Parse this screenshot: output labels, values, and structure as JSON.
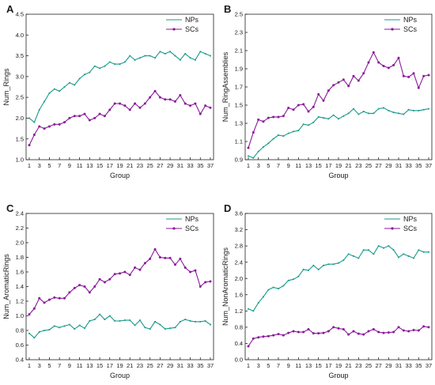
{
  "colors": {
    "NPs": "#1a9a8a",
    "SCs": "#8a1a9a",
    "axis": "#222222"
  },
  "chart_data": [
    {
      "panel": "A",
      "type": "line",
      "xlabel": "Group",
      "ylabel": "Num_Rings",
      "ylim": [
        1.0,
        4.5
      ],
      "yticks": [
        1.0,
        1.5,
        2.0,
        2.5,
        3.0,
        3.5,
        4.0,
        4.5
      ],
      "ytick_labels": [
        "1.0",
        "1.5",
        "2.0",
        "2.5",
        "3.0",
        "3.5",
        "4.0",
        "4.5"
      ],
      "xlim": [
        1,
        37
      ],
      "xticks": [
        1,
        3,
        5,
        7,
        9,
        11,
        13,
        15,
        17,
        19,
        21,
        23,
        25,
        27,
        29,
        31,
        33,
        35,
        37
      ],
      "xtick_labels": [
        "1",
        "3",
        "5",
        "7",
        "9",
        "11",
        "13",
        "15",
        "17",
        "19",
        "21",
        "23",
        "25",
        "27",
        "29",
        "31",
        "33",
        "35",
        "37"
      ],
      "legend": "top-right",
      "series": [
        {
          "name": "NPs",
          "values": [
            2.0,
            1.9,
            2.2,
            2.4,
            2.6,
            2.7,
            2.65,
            2.75,
            2.85,
            2.8,
            2.95,
            3.05,
            3.1,
            3.25,
            3.2,
            3.25,
            3.35,
            3.3,
            3.3,
            3.35,
            3.5,
            3.4,
            3.45,
            3.5,
            3.5,
            3.45,
            3.6,
            3.55,
            3.6,
            3.5,
            3.4,
            3.55,
            3.45,
            3.4,
            3.6,
            3.55,
            3.5
          ]
        },
        {
          "name": "SCs",
          "values": [
            1.35,
            1.6,
            1.8,
            1.75,
            1.8,
            1.85,
            1.85,
            1.9,
            2.0,
            2.05,
            2.05,
            2.1,
            1.95,
            2.0,
            2.1,
            2.05,
            2.2,
            2.35,
            2.35,
            2.3,
            2.2,
            2.35,
            2.25,
            2.35,
            2.5,
            2.65,
            2.5,
            2.45,
            2.45,
            2.4,
            2.55,
            2.35,
            2.3,
            2.35,
            2.1,
            2.3,
            2.25
          ]
        }
      ]
    },
    {
      "panel": "B",
      "type": "line",
      "xlabel": "Group",
      "ylabel": "Num_RingAssemblies",
      "ylim": [
        0.9,
        2.5
      ],
      "yticks": [
        0.9,
        1.1,
        1.3,
        1.5,
        1.7,
        1.9,
        2.1,
        2.3,
        2.5
      ],
      "ytick_labels": [
        "0.9",
        "1.1",
        "1.3",
        "1.5",
        "1.7",
        "1.9",
        "2.1",
        "2.3",
        "2.5"
      ],
      "xlim": [
        1,
        37
      ],
      "xticks": [
        1,
        3,
        5,
        7,
        9,
        11,
        13,
        15,
        17,
        19,
        21,
        23,
        25,
        27,
        29,
        31,
        33,
        35,
        37
      ],
      "xtick_labels": [
        "1",
        "3",
        "5",
        "7",
        "9",
        "11",
        "13",
        "15",
        "17",
        "19",
        "21",
        "23",
        "25",
        "27",
        "29",
        "31",
        "33",
        "35",
        "37"
      ],
      "legend": "top-right",
      "series": [
        {
          "name": "NPs",
          "values": [
            0.94,
            0.92,
            0.99,
            1.04,
            1.08,
            1.13,
            1.17,
            1.16,
            1.19,
            1.21,
            1.22,
            1.29,
            1.28,
            1.31,
            1.37,
            1.36,
            1.35,
            1.39,
            1.35,
            1.38,
            1.41,
            1.46,
            1.4,
            1.43,
            1.41,
            1.41,
            1.46,
            1.47,
            1.44,
            1.42,
            1.41,
            1.4,
            1.45,
            1.44,
            1.44,
            1.45,
            1.46
          ]
        },
        {
          "name": "SCs",
          "values": [
            1.03,
            1.2,
            1.34,
            1.32,
            1.36,
            1.37,
            1.37,
            1.38,
            1.47,
            1.45,
            1.5,
            1.51,
            1.43,
            1.48,
            1.62,
            1.55,
            1.66,
            1.72,
            1.75,
            1.78,
            1.71,
            1.82,
            1.77,
            1.85,
            1.97,
            2.08,
            1.97,
            1.93,
            1.91,
            1.94,
            2.02,
            1.82,
            1.81,
            1.85,
            1.69,
            1.82,
            1.83
          ]
        }
      ]
    },
    {
      "panel": "C",
      "type": "line",
      "xlabel": "Group",
      "ylabel": "Num_AromaticRings",
      "ylim": [
        0.4,
        2.4
      ],
      "yticks": [
        0.4,
        0.6,
        0.8,
        1.0,
        1.2,
        1.4,
        1.6,
        1.8,
        2.0,
        2.2,
        2.4
      ],
      "ytick_labels": [
        "0.4",
        "0.6",
        "0.8",
        "1.0",
        "1.2",
        "1.4",
        "1.6",
        "1.8",
        "2.0",
        "2.2",
        "2.4"
      ],
      "xlim": [
        1,
        37
      ],
      "xticks": [
        1,
        3,
        5,
        7,
        9,
        11,
        13,
        15,
        17,
        19,
        21,
        23,
        25,
        27,
        29,
        31,
        33,
        35,
        37
      ],
      "xtick_labels": [
        "1",
        "3",
        "5",
        "7",
        "9",
        "11",
        "13",
        "15",
        "17",
        "19",
        "21",
        "23",
        "25",
        "27",
        "29",
        "31",
        "33",
        "35",
        "37"
      ],
      "legend": "top-right",
      "series": [
        {
          "name": "NPs",
          "values": [
            0.76,
            0.7,
            0.78,
            0.8,
            0.81,
            0.86,
            0.84,
            0.86,
            0.88,
            0.82,
            0.87,
            0.83,
            0.93,
            0.95,
            1.02,
            0.95,
            1.0,
            0.93,
            0.93,
            0.94,
            0.94,
            0.87,
            0.94,
            0.84,
            0.82,
            0.92,
            0.88,
            0.82,
            0.83,
            0.84,
            0.92,
            0.95,
            0.93,
            0.92,
            0.92,
            0.93,
            0.88
          ]
        },
        {
          "name": "SCs",
          "values": [
            1.02,
            1.1,
            1.24,
            1.18,
            1.22,
            1.25,
            1.24,
            1.24,
            1.32,
            1.38,
            1.42,
            1.4,
            1.32,
            1.4,
            1.5,
            1.46,
            1.5,
            1.57,
            1.58,
            1.6,
            1.56,
            1.66,
            1.63,
            1.72,
            1.78,
            1.91,
            1.8,
            1.79,
            1.79,
            1.7,
            1.78,
            1.66,
            1.6,
            1.62,
            1.4,
            1.46,
            1.47
          ]
        }
      ]
    },
    {
      "panel": "D",
      "type": "line",
      "xlabel": "Group",
      "ylabel": "Num_NonAromaticRings",
      "ylim": [
        0.0,
        3.6
      ],
      "yticks": [
        0.0,
        0.4,
        0.8,
        1.2,
        1.6,
        2.0,
        2.4,
        2.8,
        3.2,
        3.6
      ],
      "ytick_labels": [
        "0.0",
        "0.4",
        "0.8",
        "1.2",
        "1.6",
        "2.0",
        "2.4",
        "2.8",
        "3.2",
        "3.6"
      ],
      "xlim": [
        1,
        37
      ],
      "xticks": [
        1,
        3,
        5,
        7,
        9,
        11,
        13,
        15,
        17,
        19,
        21,
        23,
        25,
        27,
        29,
        31,
        33,
        35,
        37
      ],
      "xtick_labels": [
        "1",
        "3",
        "5",
        "7",
        "9",
        "11",
        "13",
        "15",
        "17",
        "19",
        "21",
        "23",
        "25",
        "27",
        "29",
        "31",
        "33",
        "35",
        "37"
      ],
      "legend": "top-right",
      "series": [
        {
          "name": "NPs",
          "values": [
            1.25,
            1.2,
            1.4,
            1.55,
            1.72,
            1.78,
            1.75,
            1.82,
            1.95,
            1.98,
            2.05,
            2.22,
            2.2,
            2.32,
            2.22,
            2.32,
            2.35,
            2.35,
            2.38,
            2.45,
            2.6,
            2.55,
            2.5,
            2.7,
            2.7,
            2.6,
            2.8,
            2.75,
            2.8,
            2.7,
            2.52,
            2.6,
            2.55,
            2.5,
            2.7,
            2.65,
            2.65
          ]
        },
        {
          "name": "SCs",
          "values": [
            0.33,
            0.52,
            0.55,
            0.57,
            0.58,
            0.6,
            0.63,
            0.6,
            0.66,
            0.7,
            0.68,
            0.68,
            0.75,
            0.65,
            0.65,
            0.66,
            0.7,
            0.8,
            0.77,
            0.75,
            0.62,
            0.7,
            0.64,
            0.62,
            0.7,
            0.75,
            0.68,
            0.66,
            0.67,
            0.68,
            0.8,
            0.72,
            0.7,
            0.73,
            0.72,
            0.82,
            0.8
          ]
        }
      ]
    }
  ]
}
